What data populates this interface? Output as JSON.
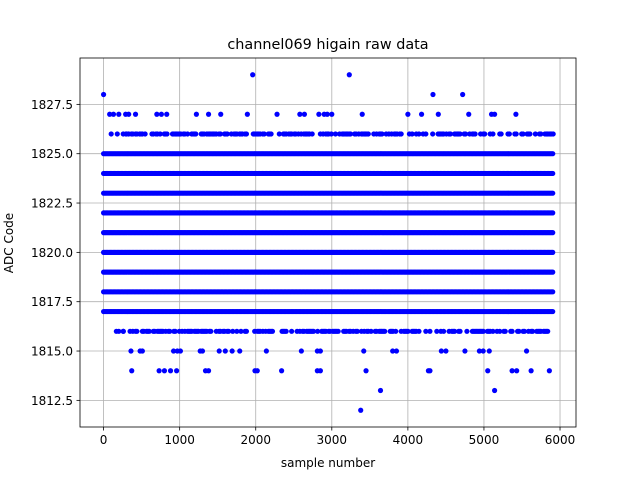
{
  "chart_data": {
    "type": "scatter",
    "title": "channel069 higain raw data",
    "xlabel": "sample number",
    "ylabel": "ADC Code",
    "xlim": [
      -310,
      6210
    ],
    "ylim": [
      1811.15,
      1829.85
    ],
    "xticks": [
      0,
      1000,
      2000,
      3000,
      4000,
      5000,
      6000
    ],
    "yticks": [
      1812.5,
      1815.0,
      1817.5,
      1820.0,
      1822.5,
      1825.0,
      1827.5
    ],
    "xtick_labels": [
      "0",
      "1000",
      "2000",
      "3000",
      "4000",
      "5000",
      "6000"
    ],
    "ytick_labels": [
      "1812.5",
      "1815.0",
      "1817.5",
      "1820.0",
      "1822.5",
      "1825.0",
      "1827.5"
    ],
    "grid": true,
    "marker_color": "#0000ff",
    "x_range": [
      0,
      5920
    ],
    "dense_levels": [
      1817,
      1818,
      1819,
      1820,
      1821,
      1822,
      1823,
      1824,
      1825
    ],
    "medium_levels": [
      1816,
      1826
    ],
    "sparse_points": {
      "1827": [
        80,
        130,
        200,
        290,
        330,
        420,
        700,
        760,
        830,
        1220,
        1380,
        1540,
        1890,
        2280,
        2580,
        2640,
        2830,
        2900,
        2940,
        3000,
        3400,
        4000,
        4180,
        4400,
        4800,
        5100,
        5140,
        5420
      ],
      "1815": [
        360,
        480,
        510,
        920,
        970,
        1010,
        1270,
        1300,
        1520,
        1600,
        1690,
        1790,
        2140,
        2600,
        2810,
        2850,
        3420,
        3800,
        3850,
        4440,
        4500,
        4750,
        4940,
        4990,
        5070,
        5560
      ],
      "1814": [
        370,
        730,
        800,
        880,
        960,
        1340,
        1380,
        1990,
        2020,
        2340,
        2810,
        2850,
        3450,
        4270,
        4290,
        5050,
        5370,
        5430,
        5620,
        5860
      ],
      "1828": [
        0,
        4330,
        4720
      ],
      "1829": [
        1960,
        3230
      ],
      "1813": [
        3640,
        5140
      ],
      "1812": [
        3380
      ]
    },
    "extra_points": {
      "1826": [
        100,
        180,
        300
      ],
      "1816": [
        200,
        260
      ]
    }
  }
}
